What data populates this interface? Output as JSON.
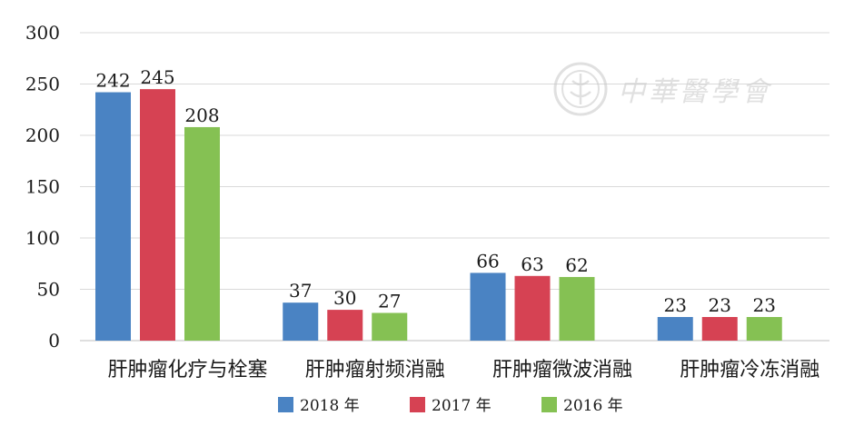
{
  "watermark": {
    "text": "中華醫學會"
  },
  "colors": {
    "2018 年": "#4a83c3",
    "2017 年": "#d64253",
    "2016 年": "#85c153"
  },
  "chart_data": {
    "type": "bar",
    "categories": [
      "肝肿瘤化疗与栓塞",
      "肝肿瘤射频消融",
      "肝肿瘤微波消融",
      "肝肿瘤冷冻消融"
    ],
    "series": [
      {
        "name": "2018 年",
        "values": [
          242,
          37,
          66,
          23
        ]
      },
      {
        "name": "2017 年",
        "values": [
          245,
          30,
          63,
          23
        ]
      },
      {
        "name": "2016 年",
        "values": [
          208,
          27,
          62,
          23
        ]
      }
    ],
    "yticks": [
      "0",
      "50",
      "100",
      "150",
      "200",
      "250",
      "300"
    ],
    "ylim": [
      0,
      300
    ],
    "grid": true,
    "legend": "bottom-center",
    "show_data_labels": true
  }
}
